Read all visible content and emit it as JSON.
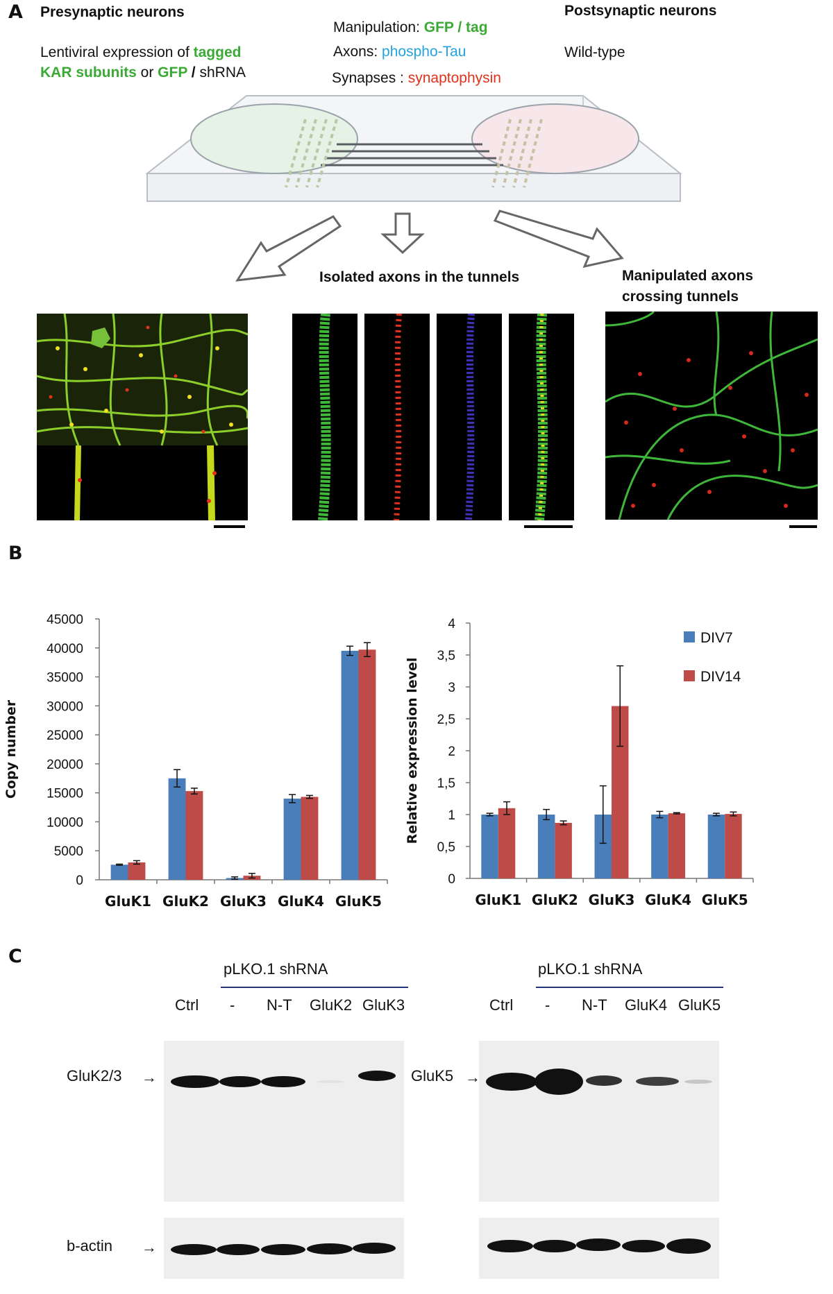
{
  "panel_a": {
    "label": "A",
    "pre_title": "Presynaptic neurons",
    "pre_line1_text": "Lentiviral expression of ",
    "pre_line1_colored": "tagged",
    "pre_line2_colored": "KAR subunits",
    "pre_line2_or": " or ",
    "pre_line2_gfp": "GFP",
    "pre_line2_slash": " / ",
    "pre_line2_shrna": "shRNA",
    "manip_label": "Manipulation: ",
    "manip_value": "GFP / tag",
    "axons_label": "Axons: ",
    "axons_value": "phospho-Tau",
    "syn_label": "Synapses : ",
    "syn_value": "synaptophysin",
    "post_title": "Postsynaptic neurons",
    "post_value": "Wild-type",
    "isolated_caption": "Isolated axons in the tunnels",
    "crossing_caption_1": "Manipulated axons",
    "crossing_caption_2": "crossing tunnels"
  },
  "panel_b": {
    "label": "B"
  },
  "panel_c": {
    "label": "C",
    "left": {
      "header": "pLKO.1 shRNA",
      "lanes": [
        "Ctrl",
        "-",
        "N-T",
        "GluK2",
        "GluK3"
      ],
      "target_label": "GluK2/3",
      "loading_label": "b-actin",
      "band_intensity": [
        1.0,
        0.95,
        0.9,
        0.03,
        0.85
      ]
    },
    "right": {
      "header": "pLKO.1 shRNA",
      "lanes": [
        "Ctrl",
        "-",
        "N-T",
        "GluK4",
        "GluK5"
      ],
      "target_label": "GluK5",
      "band_intensity": [
        1.0,
        1.0,
        0.7,
        0.65,
        0.12
      ]
    }
  },
  "chart_data": [
    {
      "type": "bar",
      "categories": [
        "GluK1",
        "GluK2",
        "GluK3",
        "GluK4",
        "GluK5"
      ],
      "series": [
        {
          "values": [
            2600,
            17500,
            300,
            14000,
            39500
          ],
          "errors": [
            100,
            1500,
            200,
            700,
            800
          ],
          "color": "#4a7ebb"
        },
        {
          "values": [
            3000,
            15300,
            700,
            14300,
            39700
          ],
          "errors": [
            300,
            500,
            400,
            250,
            1200
          ],
          "color": "#be4b48"
        }
      ],
      "ylabel": "Copy  number",
      "ylim": [
        0,
        45000
      ],
      "yticks": [
        "0",
        "5000",
        "10000",
        "15000",
        "20000",
        "25000",
        "30000",
        "35000",
        "40000",
        "45000"
      ],
      "grid": false
    },
    {
      "type": "bar",
      "categories": [
        "GluK1",
        "GluK2",
        "GluK3",
        "GluK4",
        "GluK5"
      ],
      "series": [
        {
          "name": "DIV7",
          "values": [
            1.0,
            1.0,
            1.0,
            1.0,
            1.0
          ],
          "errors": [
            0.02,
            0.08,
            0.45,
            0.05,
            0.02
          ],
          "color": "#4a7ebb"
        },
        {
          "name": "DIV14",
          "values": [
            1.1,
            0.87,
            2.7,
            1.02,
            1.01
          ],
          "errors": [
            0.1,
            0.03,
            0.63,
            0.01,
            0.03
          ],
          "color": "#be4b48"
        }
      ],
      "ylabel": "Relative expression level",
      "ylim": [
        0,
        4
      ],
      "yticks": [
        "0",
        "0,5",
        "1",
        "1,5",
        "2",
        "2,5",
        "3",
        "3,5",
        "4"
      ],
      "legend_position": "top-right",
      "grid": false
    }
  ]
}
